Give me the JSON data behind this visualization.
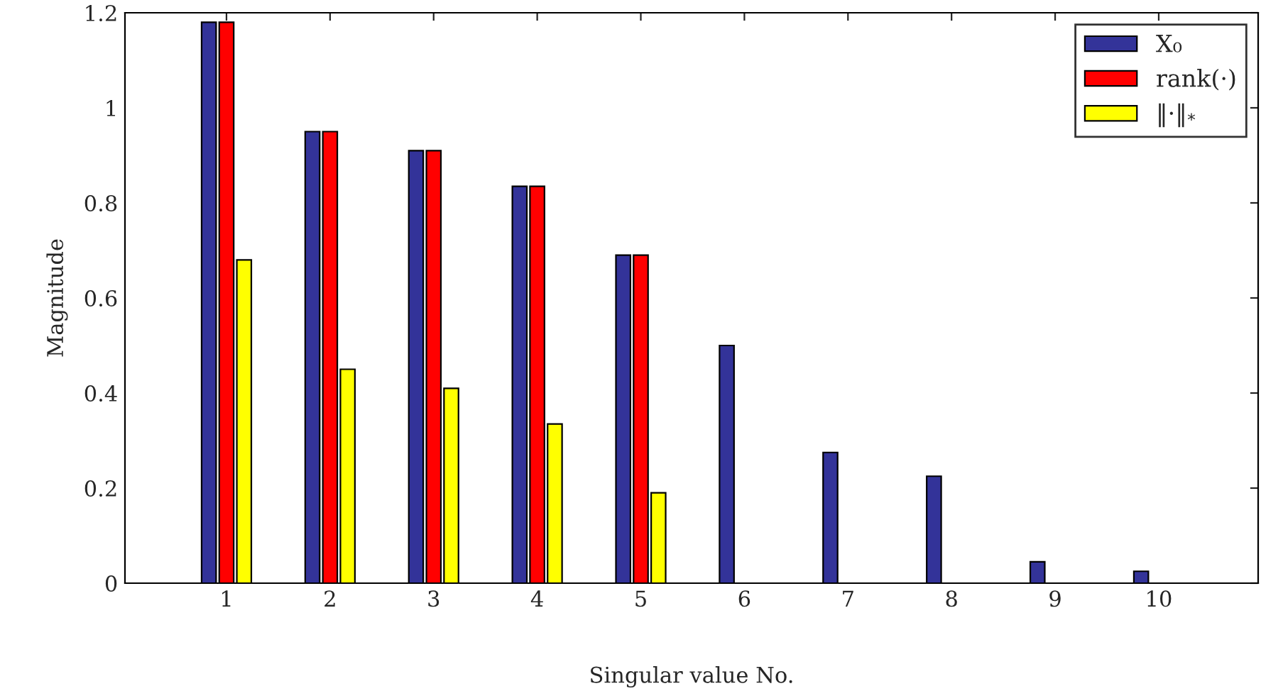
{
  "chart_data": {
    "type": "bar",
    "xlabel": "Singular value No.",
    "ylabel": "Magnitude",
    "categories": [
      "1",
      "2",
      "3",
      "4",
      "5",
      "6",
      "7",
      "8",
      "9",
      "10"
    ],
    "series": [
      {
        "name": "X₀",
        "color": "#333399",
        "values": [
          1.18,
          0.95,
          0.91,
          0.835,
          0.69,
          0.5,
          0.275,
          0.225,
          0.045,
          0.025
        ]
      },
      {
        "name": "rank(·)",
        "color": "#ff0000",
        "values": [
          1.18,
          0.95,
          0.91,
          0.835,
          0.69,
          0,
          0,
          0,
          0,
          0
        ]
      },
      {
        "name": "‖·‖$_{*}$",
        "color": "#ffff00",
        "values": [
          0.68,
          0.45,
          0.41,
          0.335,
          0.19,
          0,
          0,
          0,
          0,
          0
        ]
      }
    ],
    "ylim": [
      0,
      1.2
    ],
    "yticks": [
      0,
      0.2,
      0.4,
      0.6,
      0.8,
      1,
      1.2
    ],
    "grid": false,
    "legend": "top right"
  }
}
